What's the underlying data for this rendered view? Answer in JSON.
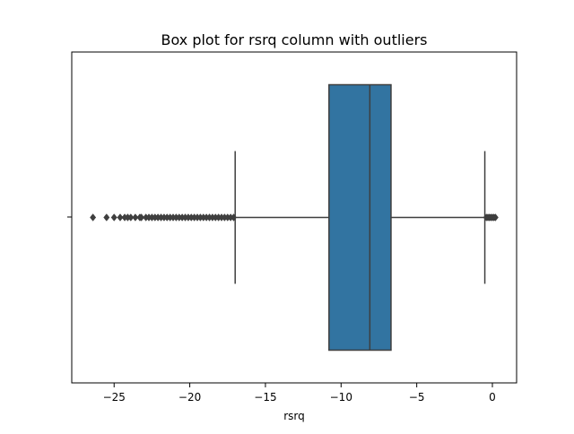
{
  "chart_data": {
    "type": "box",
    "title": "Box plot for rsrq column with outliers",
    "xlabel": "rsrq",
    "ylabel": "",
    "orientation": "horizontal",
    "xlim": [
      -27.8,
      1.6
    ],
    "xticks": [
      -25,
      -20,
      -15,
      -10,
      -5,
      0
    ],
    "xtick_labels": [
      "−25",
      "−20",
      "−15",
      "−10",
      "−5",
      "0"
    ],
    "grid": false,
    "box": {
      "whisker_low": -17.0,
      "q1": -10.8,
      "median": -8.1,
      "q3": -6.7,
      "whisker_high": -0.5,
      "color": "#3274a1",
      "line_color": "#3f3f3f"
    },
    "outliers": [
      -26.4,
      -25.5,
      -25.0,
      -24.6,
      -24.3,
      -24.1,
      -23.9,
      -23.6,
      -23.3,
      -23.2,
      -22.9,
      -22.7,
      -22.5,
      -22.3,
      -22.1,
      -21.9,
      -21.7,
      -21.5,
      -21.3,
      -21.1,
      -20.9,
      -20.7,
      -20.5,
      -20.3,
      -20.1,
      -19.9,
      -19.7,
      -19.5,
      -19.3,
      -19.1,
      -18.9,
      -18.7,
      -18.5,
      -18.3,
      -18.1,
      -17.9,
      -17.7,
      -17.5,
      -17.3,
      -17.1,
      -0.4,
      -0.3,
      -0.2,
      -0.1,
      0.0,
      0.1,
      0.2
    ]
  }
}
